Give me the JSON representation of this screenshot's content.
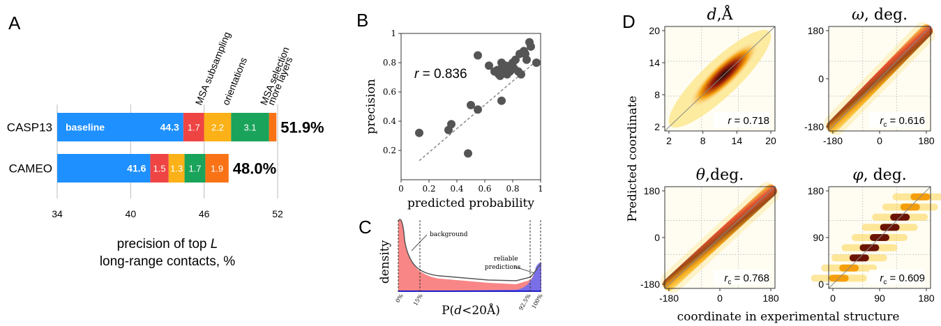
{
  "chart_data": [
    {
      "panel_label": "A",
      "type": "bar",
      "orientation": "horizontal-stacked",
      "categories": [
        "CASP13",
        "CAMEO"
      ],
      "segments": [
        {
          "name": "baseline",
          "color": "#1e90ff",
          "values": [
            44.3,
            41.6
          ],
          "labels": [
            "44.3",
            "41.6"
          ]
        },
        {
          "name": "MSA subsampling",
          "color": "#ef4444",
          "values": [
            1.7,
            1.5
          ],
          "labels": [
            "1.7",
            "1.5"
          ]
        },
        {
          "name": "orientations",
          "color": "#fbb117",
          "values": [
            2.2,
            1.3
          ],
          "labels": [
            "2.2",
            "1.3"
          ]
        },
        {
          "name": "MSA selection",
          "color": "#1aa35a",
          "values": [
            3.1,
            1.7
          ],
          "labels": [
            "3.1",
            "1.7"
          ]
        },
        {
          "name": "more layers",
          "color": "#f97316",
          "values": [
            0.6,
            1.9
          ],
          "labels": [
            "",
            "1.9"
          ]
        }
      ],
      "bar_label": "baseline",
      "totals": [
        "51.9%",
        "48.0%"
      ],
      "xlim": [
        34,
        52
      ],
      "xticks": [
        "34",
        "40",
        "46",
        "52"
      ],
      "xlabel_line1": "precision of top",
      "xlabel_italic": "L",
      "xlabel_line2": "long-range contacts, %"
    },
    {
      "panel_label": "B",
      "type": "scatter",
      "xlabel": "predicted probability",
      "ylabel": "precision",
      "xlim": [
        0,
        1
      ],
      "ylim": [
        0,
        1
      ],
      "xticks": [
        "0",
        "0.2",
        "0.4",
        "0.6",
        "0.8",
        "1"
      ],
      "yticks": [
        "0.2",
        "0.4",
        "0.6",
        "0.8",
        "1"
      ],
      "annotation_var": "r",
      "annotation_value": " = 0.836",
      "trend": [
        [
          0.13,
          0.13
        ],
        [
          0.98,
          0.82
        ]
      ],
      "points": [
        [
          0.13,
          0.32
        ],
        [
          0.34,
          0.34
        ],
        [
          0.36,
          0.38
        ],
        [
          0.48,
          0.18
        ],
        [
          0.5,
          0.51
        ],
        [
          0.55,
          0.48
        ],
        [
          0.55,
          0.85
        ],
        [
          0.69,
          0.75
        ],
        [
          0.7,
          0.72
        ],
        [
          0.71,
          0.73
        ],
        [
          0.72,
          0.8
        ],
        [
          0.72,
          0.76
        ],
        [
          0.73,
          0.75
        ],
        [
          0.74,
          0.76
        ],
        [
          0.75,
          0.78
        ],
        [
          0.76,
          0.72
        ],
        [
          0.78,
          0.78
        ],
        [
          0.8,
          0.8
        ],
        [
          0.82,
          0.82
        ],
        [
          0.84,
          0.74
        ],
        [
          0.85,
          0.86
        ],
        [
          0.86,
          0.72
        ],
        [
          0.88,
          0.88
        ],
        [
          0.9,
          0.82
        ],
        [
          0.92,
          0.94
        ],
        [
          0.93,
          0.91
        ],
        [
          0.97,
          0.8
        ],
        [
          0.72,
          0.54
        ],
        [
          0.71,
          0.71
        ],
        [
          0.63,
          0.78
        ],
        [
          0.78,
          0.74
        ],
        [
          0.81,
          0.76
        ],
        [
          0.89,
          0.86
        ],
        [
          0.67,
          0.74
        ]
      ]
    },
    {
      "panel_label": "C",
      "type": "area",
      "xlabel_prefix": "P(",
      "xlabel_italic": "d",
      "xlabel_suffix": "<20Å)",
      "ylabel": "density",
      "xticks": [
        "0%",
        "15%",
        "92.5%",
        "100%"
      ],
      "annotations": [
        "background",
        "reliable",
        "predictions"
      ]
    },
    {
      "panel_label": "D",
      "type": "heatmap",
      "ylabel": "Predicted coordinate",
      "xlabel": "coordinate in experimental structure",
      "panels": [
        {
          "title_var": "d",
          "title_unit": ",Å",
          "xticks": [
            "2",
            "8",
            "14",
            "20"
          ],
          "yticks": [
            "20",
            "14",
            "8",
            "2"
          ],
          "stat_var": "r",
          "stat_sub": "",
          "stat_value": " = 0.718",
          "style": "blob"
        },
        {
          "title_var": "ω",
          "title_unit": ", deg.",
          "xticks": [
            "-180",
            "0",
            "180"
          ],
          "yticks": [
            "180",
            "0",
            "-180"
          ],
          "stat_var": "r",
          "stat_sub": "c",
          "stat_value": " = 0.616",
          "style": "diag"
        },
        {
          "title_var": "θ",
          "title_unit": ",deg.",
          "xticks": [
            "-180",
            "0",
            "180"
          ],
          "yticks": [
            "180",
            "0",
            "-180"
          ],
          "stat_var": "r",
          "stat_sub": "c",
          "stat_value": " = 0.768",
          "style": "diag"
        },
        {
          "title_var": "φ",
          "title_unit": ", deg.",
          "xticks": [
            "0",
            "90",
            "180"
          ],
          "yticks": [
            "180",
            "90",
            "0"
          ],
          "stat_var": "r",
          "stat_sub": "c",
          "stat_value": " = 0.609",
          "style": "bands"
        }
      ]
    }
  ]
}
